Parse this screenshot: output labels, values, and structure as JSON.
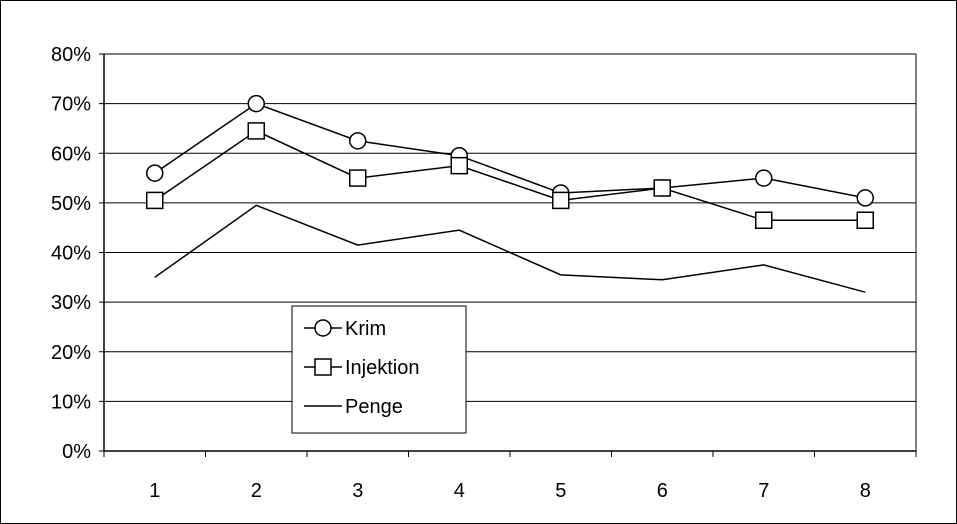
{
  "chart_data": {
    "type": "line",
    "categories": [
      "1",
      "2",
      "3",
      "4",
      "5",
      "6",
      "7",
      "8"
    ],
    "ylim": [
      0,
      80
    ],
    "yticks": [
      "0%",
      "10%",
      "20%",
      "30%",
      "40%",
      "50%",
      "60%",
      "70%",
      "80%"
    ],
    "grid": true,
    "legend_position": "lower-left",
    "series": [
      {
        "name": "Krim",
        "marker": "circle",
        "values": [
          56,
          70,
          62.5,
          59.5,
          52,
          53,
          55,
          51
        ]
      },
      {
        "name": "Injektion",
        "marker": "square",
        "values": [
          50.5,
          64.5,
          55,
          57.5,
          50.5,
          53,
          46.5,
          46.5
        ]
      },
      {
        "name": "Penge",
        "marker": "none",
        "values": [
          35,
          49.5,
          41.5,
          44.5,
          35.5,
          34.5,
          37.5,
          32
        ]
      }
    ],
    "colors": {
      "line": "#000000",
      "grid": "#000000",
      "background": "#ffffff"
    }
  }
}
